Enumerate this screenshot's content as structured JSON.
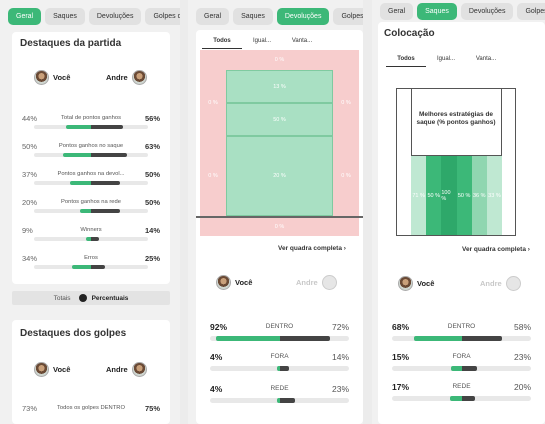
{
  "panel1": {
    "tabs": [
      "Geral",
      "Saques",
      "Devoluções",
      "Golpes de"
    ],
    "match_title": "Destaques da partida",
    "player1": "Você",
    "player2": "Andre",
    "stats": [
      {
        "left": "44%",
        "label": "Total de pontos ganhos",
        "right": "56%",
        "lf": 0.44,
        "rf": 0.56
      },
      {
        "left": "50%",
        "label": "Pontos ganhos no saque",
        "right": "63%",
        "lf": 0.5,
        "rf": 0.63
      },
      {
        "left": "37%",
        "label": "Pontos ganhos na devol...",
        "right": "50%",
        "lf": 0.37,
        "rf": 0.5
      },
      {
        "left": "20%",
        "label": "Pontos ganhos na rede",
        "right": "50%",
        "lf": 0.2,
        "rf": 0.5
      },
      {
        "left": "9%",
        "label": "Winners",
        "right": "14%",
        "lf": 0.09,
        "rf": 0.14
      },
      {
        "left": "34%",
        "label": "Erros",
        "right": "25%",
        "lf": 0.34,
        "rf": 0.25
      }
    ],
    "toggle_left": "Totais",
    "toggle_right": "Percentuais",
    "shots_title": "Destaques dos golpes",
    "shots_stat": {
      "left": "73%",
      "label": "Todos os golpes DENTRO",
      "right": "75%"
    }
  },
  "panel2": {
    "tabs": [
      "Geral",
      "Saques",
      "Devoluções",
      "Golpes de"
    ],
    "subtabs": [
      "Todos",
      "Igual...",
      "Vanta..."
    ],
    "zones": {
      "top": "0 %",
      "left_upper": "0 %",
      "right_upper": "0 %",
      "mid_top": "13 %",
      "mid": "50 %",
      "left_lower": "0 %",
      "center_lower": "20 %",
      "right_lower": "0 %",
      "bottom": "0 %"
    },
    "link": "Ver quadra completa",
    "player1": "Você",
    "player2": "Andre",
    "stats": [
      {
        "left": "92%",
        "label": "DENTRO",
        "right": "72%",
        "lf": 0.92,
        "rf": 0.72
      },
      {
        "left": "4%",
        "label": "FORA",
        "right": "14%",
        "lf": 0.04,
        "rf": 0.14
      },
      {
        "left": "4%",
        "label": "REDE",
        "right": "23%",
        "lf": 0.04,
        "rf": 0.23
      }
    ]
  },
  "panel3": {
    "tabs": [
      "Geral",
      "Saques",
      "Devoluções",
      "Golpes de"
    ],
    "title": "Colocação",
    "subtabs": [
      "Todos",
      "Igual...",
      "Vanta..."
    ],
    "best_title": "Melhores estratégias de saque (% pontos ganhos)",
    "zones": [
      "71 %",
      "50 %",
      "100 %",
      "50 %",
      "36 %",
      "33 %"
    ],
    "link": "Ver quadra completa",
    "player1": "Você",
    "player2": "Andre",
    "stats": [
      {
        "left": "68%",
        "label": "DENTRO",
        "right": "58%",
        "lf": 0.68,
        "rf": 0.58
      },
      {
        "left": "15%",
        "label": "FORA",
        "right": "23%",
        "lf": 0.15,
        "rf": 0.23
      },
      {
        "left": "17%",
        "label": "REDE",
        "right": "20%",
        "lf": 0.17,
        "rf": 0.2
      }
    ]
  }
}
